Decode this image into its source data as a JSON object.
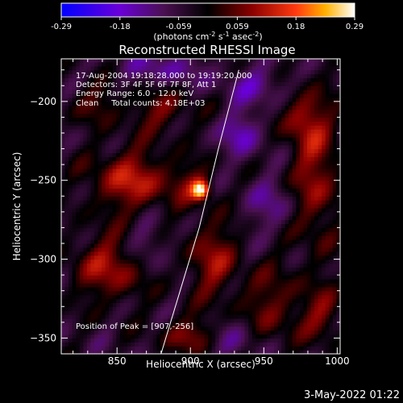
{
  "chart_data": {
    "type": "heatmap",
    "title": "Reconstructed RHESSI Image",
    "xlabel": "Heliocentric X (arcsec)",
    "ylabel": "Heliocentric Y (arcsec)",
    "xlim": [
      812,
      1002
    ],
    "ylim": [
      -360,
      -173
    ],
    "xticks": [
      850,
      900,
      950,
      1000
    ],
    "yticks": [
      -200,
      -250,
      -300,
      -350
    ],
    "colorbar": {
      "min": -0.29,
      "max": 0.29,
      "ticks": [
        "-0.29",
        "-0.18",
        "-0.059",
        "0.059",
        "0.18",
        "0.29"
      ],
      "label_main": "(photons cm",
      "label_exp1": "-2",
      "label_mid1": " s",
      "label_exp2": "-1",
      "label_mid2": " asec",
      "label_exp3": "-2",
      "label_end": ")"
    },
    "annotations": {
      "time": "17-Aug-2004 19:18:28.000 to 19:19:20.000",
      "detectors": "Detectors: 3F 4F 5F 6F 7F 8F, Att 1",
      "energy": "Energy Range: 6.0 - 12.0 keV",
      "clean": "Clean     Total counts: 4.18E+03",
      "peak": "Position of Peak = [907,-256]"
    },
    "peak": {
      "x": 907,
      "y": -256,
      "value": 0.29
    },
    "limb_curve": [
      [
        880,
        -360
      ],
      [
        893,
        -320
      ],
      [
        906,
        -280
      ],
      [
        919,
        -230
      ],
      [
        933,
        -180
      ]
    ],
    "blobs": [
      {
        "x": 907,
        "y": -256,
        "sx": 4,
        "sy": 4,
        "a": 0.27
      },
      {
        "x": 902,
        "y": -252,
        "sx": 10,
        "sy": 9,
        "a": 0.09
      },
      {
        "x": 860,
        "y": -250,
        "sx": 20,
        "sy": 14,
        "a": 0.16
      },
      {
        "x": 845,
        "y": -305,
        "sx": 18,
        "sy": 15,
        "a": 0.14
      },
      {
        "x": 900,
        "y": -348,
        "sx": 14,
        "sy": 8,
        "a": 0.12
      },
      {
        "x": 915,
        "y": -300,
        "sx": 12,
        "sy": 18,
        "a": 0.13
      },
      {
        "x": 880,
        "y": -205,
        "sx": 16,
        "sy": 10,
        "a": 0.1
      },
      {
        "x": 985,
        "y": -245,
        "sx": 12,
        "sy": 35,
        "a": 0.13
      },
      {
        "x": 975,
        "y": -210,
        "sx": 10,
        "sy": 10,
        "a": 0.1
      },
      {
        "x": 955,
        "y": -330,
        "sx": 15,
        "sy": 18,
        "a": 0.1
      },
      {
        "x": 990,
        "y": -335,
        "sx": 10,
        "sy": 12,
        "a": 0.1
      },
      {
        "x": 835,
        "y": -200,
        "sx": 12,
        "sy": 10,
        "a": 0.08
      },
      {
        "x": 935,
        "y": -220,
        "sx": 10,
        "sy": 10,
        "a": -0.1
      },
      {
        "x": 945,
        "y": -190,
        "sx": 16,
        "sy": 8,
        "a": -0.08
      },
      {
        "x": 880,
        "y": -180,
        "sx": 20,
        "sy": 8,
        "a": -0.08
      },
      {
        "x": 955,
        "y": -265,
        "sx": 12,
        "sy": 12,
        "a": -0.07
      },
      {
        "x": 870,
        "y": -290,
        "sx": 10,
        "sy": 12,
        "a": -0.07
      },
      {
        "x": 930,
        "y": -350,
        "sx": 14,
        "sy": 10,
        "a": -0.07
      }
    ]
  },
  "footer": {
    "date": "3-May-2022 01:22"
  }
}
